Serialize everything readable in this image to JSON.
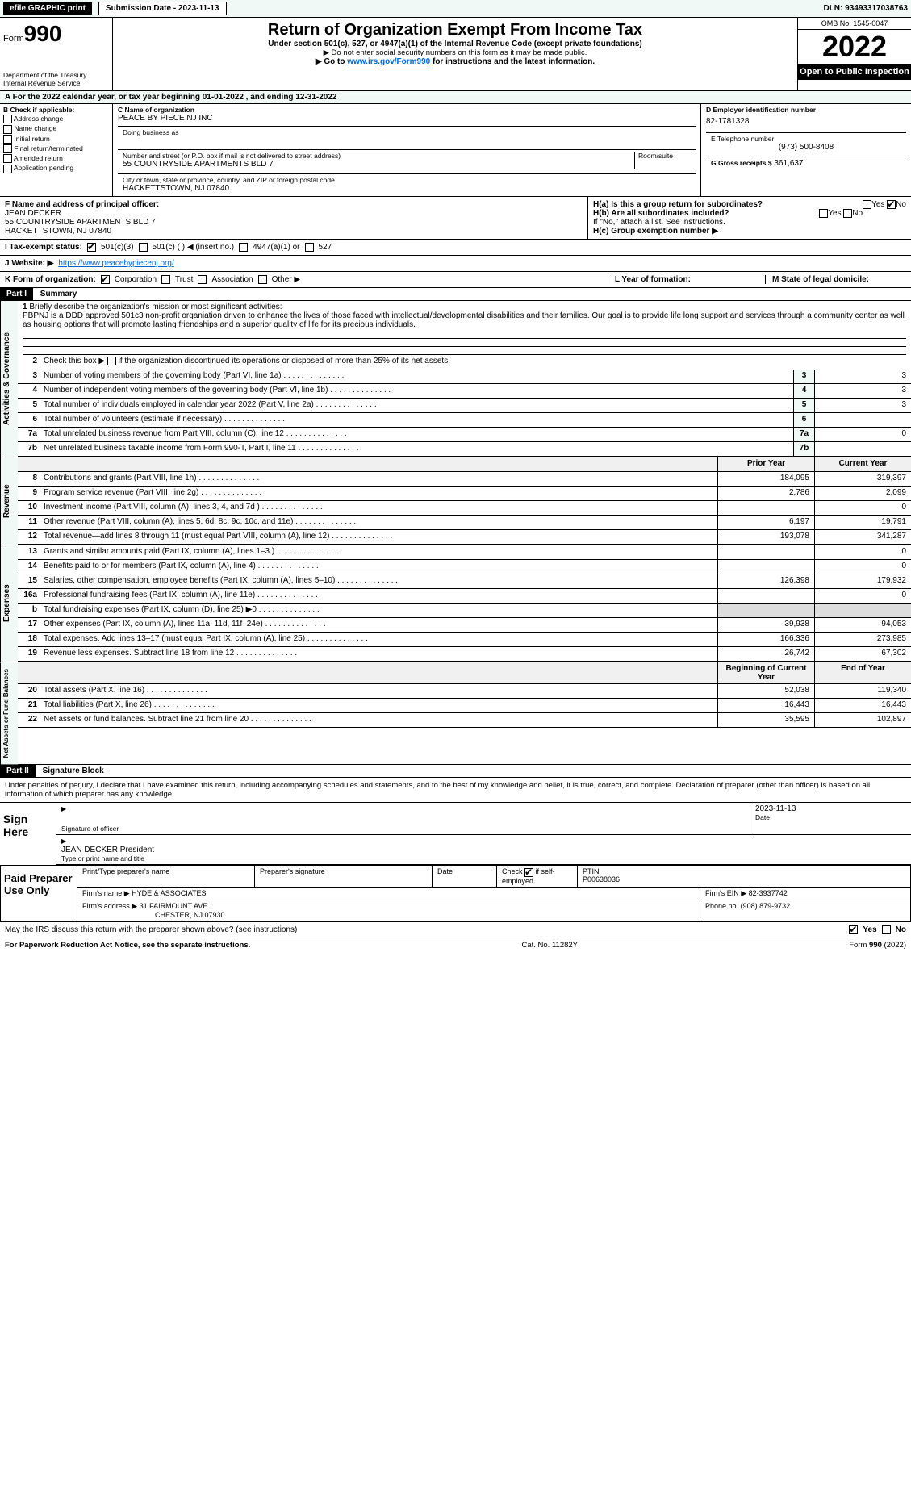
{
  "topbar": {
    "efile_label": "efile GRAPHIC print",
    "submission_label": "Submission Date - 2023-11-13",
    "dln_label": "DLN: 93493317038763"
  },
  "header": {
    "form_prefix": "Form",
    "form_number": "990",
    "title": "Return of Organization Exempt From Income Tax",
    "subtitle": "Under section 501(c), 527, or 4947(a)(1) of the Internal Revenue Code (except private foundations)",
    "warn": "▶ Do not enter social security numbers on this form as it may be made public.",
    "instr_pre": "▶ Go to ",
    "instr_link": "www.irs.gov/Form990",
    "instr_post": " for instructions and the latest information.",
    "dept": "Department of the Treasury",
    "irs": "Internal Revenue Service",
    "omb": "OMB No. 1545-0047",
    "year": "2022",
    "inspect": "Open to Public Inspection"
  },
  "row_a": "A For the 2022 calendar year, or tax year beginning 01-01-2022   , and ending 12-31-2022",
  "section_b": {
    "header": "B Check if applicable:",
    "opts": [
      "Address change",
      "Name change",
      "Initial return",
      "Final return/terminated",
      "Amended return",
      "Application pending"
    ]
  },
  "section_c": {
    "name_label": "C Name of organization",
    "name": "PEACE BY PIECE NJ INC",
    "dba_label": "Doing business as",
    "street_label": "Number and street (or P.O. box if mail is not delivered to street address)",
    "room_label": "Room/suite",
    "street": "55 COUNTRYSIDE APARTMENTS BLD 7",
    "city_label": "City or town, state or province, country, and ZIP or foreign postal code",
    "city": "HACKETTSTOWN, NJ  07840"
  },
  "section_d": {
    "ein_label": "D Employer identification number",
    "ein": "82-1781328",
    "phone_label": "E Telephone number",
    "phone": "(973) 500-8408",
    "gross_label": "G Gross receipts $",
    "gross": "361,637"
  },
  "section_f": {
    "label": "F  Name and address of principal officer:",
    "name": "JEAN DECKER",
    "street": "55 COUNTRYSIDE APARTMENTS BLD 7",
    "city": "HACKETTSTOWN, NJ  07840"
  },
  "section_h": {
    "ha": "H(a)  Is this a group return for subordinates?",
    "hb": "H(b)  Are all subordinates included?",
    "hb_note": "If \"No,\" attach a list. See instructions.",
    "hc": "H(c)  Group exemption number ▶",
    "yes": "Yes",
    "no": "No"
  },
  "row_i": {
    "label": "I   Tax-exempt status:",
    "o1": "501(c)(3)",
    "o2": "501(c) (   ) ◀ (insert no.)",
    "o3": "4947(a)(1) or",
    "o4": "527"
  },
  "row_j": {
    "label": "J   Website: ▶",
    "url": "https://www.peacebypiecenj.org/"
  },
  "row_k": {
    "label": "K Form of organization:",
    "o1": "Corporation",
    "o2": "Trust",
    "o3": "Association",
    "o4": "Other ▶",
    "l_label": "L Year of formation:",
    "m_label": "M State of legal domicile:"
  },
  "parts": {
    "p1": "Part I",
    "p1_title": "Summary",
    "p2": "Part II",
    "p2_title": "Signature Block"
  },
  "sidebars": {
    "s1": "Activities & Governance",
    "s2": "Revenue",
    "s3": "Expenses",
    "s4": "Net Assets or Fund Balances"
  },
  "p1": {
    "l1_label": "Briefly describe the organization's mission or most significant activities:",
    "l1_text": "PBPNJ is a DDD approved 501c3 non-profit organiation driven to enhance the lives of those faced with intellectual/developmental disabilities and their families. Our goal is to provide life long support and services through a community center as well as housing options that will promote lasting friendships and a superior quality of life for its precious individuals.",
    "l2": "Check this box ▶      if the organization discontinued its operations or disposed of more than 25% of its net assets.",
    "rows_gov": [
      {
        "n": "3",
        "t": "Number of voting members of the governing body (Part VI, line 1a)",
        "v": "3"
      },
      {
        "n": "4",
        "t": "Number of independent voting members of the governing body (Part VI, line 1b)",
        "v": "3"
      },
      {
        "n": "5",
        "t": "Total number of individuals employed in calendar year 2022 (Part V, line 2a)",
        "v": "3"
      },
      {
        "n": "6",
        "t": "Total number of volunteers (estimate if necessary)",
        "v": ""
      },
      {
        "n": "7a",
        "t": "Total unrelated business revenue from Part VIII, column (C), line 12",
        "v": "0"
      },
      {
        "n": "7b",
        "t": "Net unrelated business taxable income from Form 990-T, Part I, line 11",
        "v": ""
      }
    ],
    "col_prior": "Prior Year",
    "col_current": "Current Year",
    "rows_rev": [
      {
        "n": "8",
        "t": "Contributions and grants (Part VIII, line 1h)",
        "p": "184,095",
        "c": "319,397"
      },
      {
        "n": "9",
        "t": "Program service revenue (Part VIII, line 2g)",
        "p": "2,786",
        "c": "2,099"
      },
      {
        "n": "10",
        "t": "Investment income (Part VIII, column (A), lines 3, 4, and 7d )",
        "p": "",
        "c": "0"
      },
      {
        "n": "11",
        "t": "Other revenue (Part VIII, column (A), lines 5, 6d, 8c, 9c, 10c, and 11e)",
        "p": "6,197",
        "c": "19,791"
      },
      {
        "n": "12",
        "t": "Total revenue—add lines 8 through 11 (must equal Part VIII, column (A), line 12)",
        "p": "193,078",
        "c": "341,287"
      }
    ],
    "rows_exp": [
      {
        "n": "13",
        "t": "Grants and similar amounts paid (Part IX, column (A), lines 1–3 )",
        "p": "",
        "c": "0"
      },
      {
        "n": "14",
        "t": "Benefits paid to or for members (Part IX, column (A), line 4)",
        "p": "",
        "c": "0"
      },
      {
        "n": "15",
        "t": "Salaries, other compensation, employee benefits (Part IX, column (A), lines 5–10)",
        "p": "126,398",
        "c": "179,932"
      },
      {
        "n": "16a",
        "t": "Professional fundraising fees (Part IX, column (A), line 11e)",
        "p": "",
        "c": "0"
      },
      {
        "n": "b",
        "t": "Total fundraising expenses (Part IX, column (D), line 25) ▶0",
        "p": "shade",
        "c": "shade"
      },
      {
        "n": "17",
        "t": "Other expenses (Part IX, column (A), lines 11a–11d, 11f–24e)",
        "p": "39,938",
        "c": "94,053"
      },
      {
        "n": "18",
        "t": "Total expenses. Add lines 13–17 (must equal Part IX, column (A), line 25)",
        "p": "166,336",
        "c": "273,985"
      },
      {
        "n": "19",
        "t": "Revenue less expenses. Subtract line 18 from line 12",
        "p": "26,742",
        "c": "67,302"
      }
    ],
    "col_begin": "Beginning of Current Year",
    "col_end": "End of Year",
    "rows_net": [
      {
        "n": "20",
        "t": "Total assets (Part X, line 16)",
        "p": "52,038",
        "c": "119,340"
      },
      {
        "n": "21",
        "t": "Total liabilities (Part X, line 26)",
        "p": "16,443",
        "c": "16,443"
      },
      {
        "n": "22",
        "t": "Net assets or fund balances. Subtract line 21 from line 20",
        "p": "35,595",
        "c": "102,897"
      }
    ]
  },
  "sig": {
    "decl": "Under penalties of perjury, I declare that I have examined this return, including accompanying schedules and statements, and to the best of my knowledge and belief, it is true, correct, and complete. Declaration of preparer (other than officer) is based on all information of which preparer has any knowledge.",
    "sign_here": "Sign Here",
    "sig_officer": "Signature of officer",
    "date": "Date",
    "date_val": "2023-11-13",
    "name_title": "JEAN DECKER  President",
    "name_title_label": "Type or print name and title"
  },
  "prep": {
    "label": "Paid Preparer Use Only",
    "h1": "Print/Type preparer's name",
    "h2": "Preparer's signature",
    "h3": "Date",
    "h4_pre": "Check",
    "h4_post": "if self-employed",
    "ptin_label": "PTIN",
    "ptin": "P00638036",
    "firm_name_label": "Firm's name    ▶",
    "firm_name": "HYDE & ASSOCIATES",
    "firm_ein_label": "Firm's EIN ▶",
    "firm_ein": "82-3937742",
    "firm_addr_label": "Firm's address ▶",
    "firm_addr1": "31 FAIRMOUNT AVE",
    "firm_addr2": "CHESTER, NJ  07930",
    "phone_label": "Phone no.",
    "phone": "(908) 879-9732"
  },
  "discuss": {
    "q": "May the IRS discuss this return with the preparer shown above? (see instructions)",
    "yes": "Yes",
    "no": "No"
  },
  "footer": {
    "pra": "For Paperwork Reduction Act Notice, see the separate instructions.",
    "cat": "Cat. No. 11282Y",
    "form": "Form 990 (2022)"
  }
}
